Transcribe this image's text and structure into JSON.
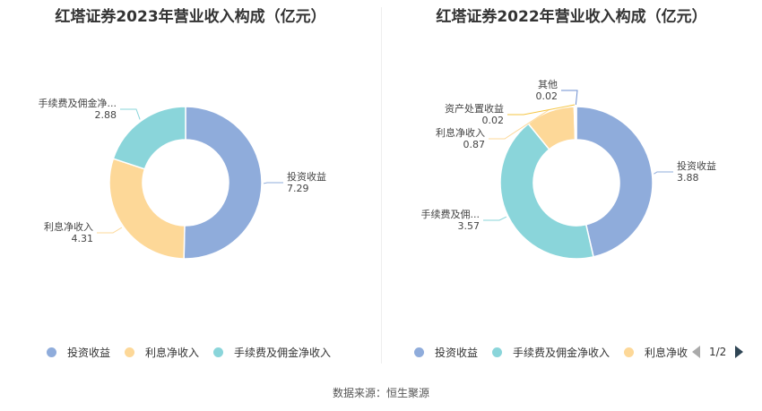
{
  "chart_data": [
    {
      "type": "pie",
      "title": "红塔证券2023年营业收入构成（亿元）",
      "slices": [
        {
          "name": "投资收益",
          "label": "投资收益",
          "value": 7.29,
          "color": "#8facdb"
        },
        {
          "name": "利息净收入",
          "label": "利息净收入",
          "value": 4.31,
          "color": "#fdd898"
        },
        {
          "name": "手续费及佣金净收入",
          "label": "手续费及佣金净...",
          "value": 2.88,
          "color": "#8ad5da"
        }
      ],
      "legend": [
        "投资收益",
        "利息净收入",
        "手续费及佣金净收入"
      ],
      "legend_position": "bottom"
    },
    {
      "type": "pie",
      "title": "红塔证券2022年营业收入构成（亿元）",
      "slices": [
        {
          "name": "投资收益",
          "label": "投资收益",
          "value": 3.88,
          "color": "#8facdb"
        },
        {
          "name": "手续费及佣金净收入",
          "label": "手续费及佣...",
          "value": 3.57,
          "color": "#8ad5da"
        },
        {
          "name": "利息净收入",
          "label": "利息净收入",
          "value": 0.87,
          "color": "#fdd898"
        },
        {
          "name": "资产处置收益",
          "label": "资产处置收益",
          "value": 0.02,
          "color": "#f5c542"
        },
        {
          "name": "其他",
          "label": "其他",
          "value": 0.02,
          "color": "#6e8fd0"
        }
      ],
      "legend": [
        "投资收益",
        "手续费及佣金净收入",
        "利息净收"
      ],
      "legend_position": "bottom"
    }
  ],
  "pager": {
    "text": "1/2"
  },
  "source": "数据来源：恒生聚源"
}
